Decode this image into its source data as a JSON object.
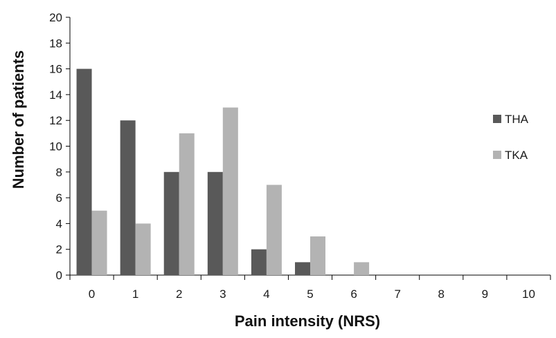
{
  "chart_data": {
    "type": "bar",
    "title": "",
    "xlabel": "Pain intensity (NRS)",
    "ylabel": "Number of patients",
    "categories": [
      "0",
      "1",
      "2",
      "3",
      "4",
      "5",
      "6",
      "7",
      "8",
      "9",
      "10"
    ],
    "series": [
      {
        "name": "THA",
        "color": "#595959",
        "values": [
          16,
          12,
          8,
          8,
          2,
          1,
          0,
          0,
          0,
          0,
          0
        ]
      },
      {
        "name": "TKA",
        "color": "#b3b3b3",
        "values": [
          5,
          4,
          11,
          13,
          7,
          3,
          1,
          0,
          0,
          0,
          0
        ]
      }
    ],
    "ylim": [
      0,
      20
    ],
    "yticks": [
      0,
      2,
      4,
      6,
      8,
      10,
      12,
      14,
      16,
      18,
      20
    ],
    "grid": false,
    "legend_position": "right"
  }
}
